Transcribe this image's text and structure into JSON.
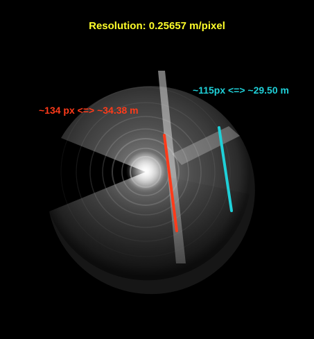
{
  "resolution_label": "Resolution: 0.25657 m/pixel",
  "measurements": [
    {
      "label": "~134 px <=> ~34.38 m",
      "color": "#ff3b1a",
      "pixels": 134,
      "meters": 34.38
    },
    {
      "label": "~115px <=> ~29.50 m",
      "color": "#1fd0d8",
      "pixels": 115,
      "meters": 29.5
    }
  ],
  "colors": {
    "background": "#000000",
    "resolution_text": "#ffff2a",
    "sonar_gray": "#8c8c8c"
  }
}
